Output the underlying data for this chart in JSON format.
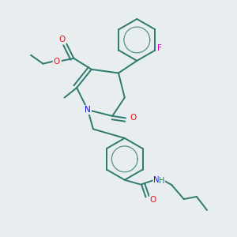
{
  "background_color": "#e8edf0",
  "bond_color": "#2d7a6e",
  "atom_colors": {
    "O": "#ee1111",
    "N": "#1111ee",
    "F": "#cc00cc",
    "H": "#2d7a6e",
    "C": "#2d7a6e"
  },
  "figsize": [
    3.0,
    3.0
  ],
  "dpi": 100,
  "lw": 1.4
}
